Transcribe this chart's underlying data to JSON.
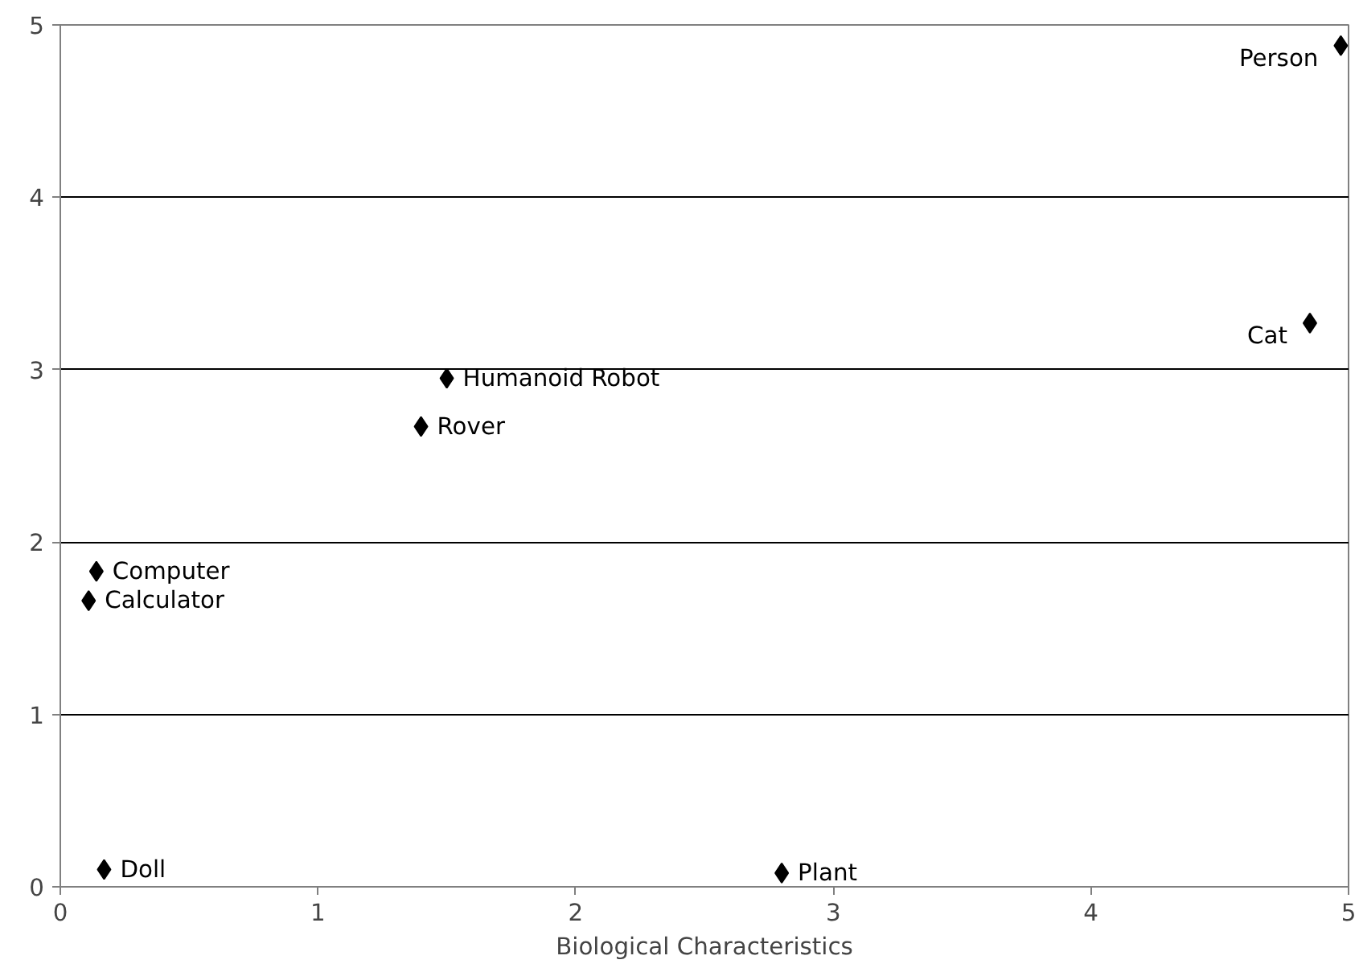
{
  "chart_data": {
    "type": "scatter",
    "xlabel": "Biological Characteristics",
    "x": [
      0.17,
      0.11,
      0.14,
      1.4,
      1.5,
      2.8,
      4.85,
      4.97
    ],
    "values": [
      0.1,
      1.66,
      1.83,
      2.67,
      2.95,
      0.08,
      3.27,
      4.88
    ],
    "color": "#000000",
    "marker": "diamond",
    "xlim": [
      0,
      5
    ],
    "ylim": [
      0,
      5
    ],
    "xticks": [
      0,
      1,
      2,
      3,
      4,
      5
    ],
    "yticks": [
      0,
      1,
      2,
      3,
      4,
      5
    ],
    "grid": "y",
    "annotations": [
      {
        "text": "Doll",
        "x": 0.17,
        "y": 0.1
      },
      {
        "text": "Calculator",
        "x": 0.11,
        "y": 1.66
      },
      {
        "text": "Computer",
        "x": 0.14,
        "y": 1.83
      },
      {
        "text": "Rover",
        "x": 1.4,
        "y": 2.67
      },
      {
        "text": "Humanoid Robot",
        "x": 1.5,
        "y": 2.95
      },
      {
        "text": "Plant",
        "x": 2.8,
        "y": 0.08
      },
      {
        "text": "Cat",
        "x": 4.85,
        "y": 3.27
      },
      {
        "text": "Person",
        "x": 4.97,
        "y": 4.88
      }
    ]
  }
}
